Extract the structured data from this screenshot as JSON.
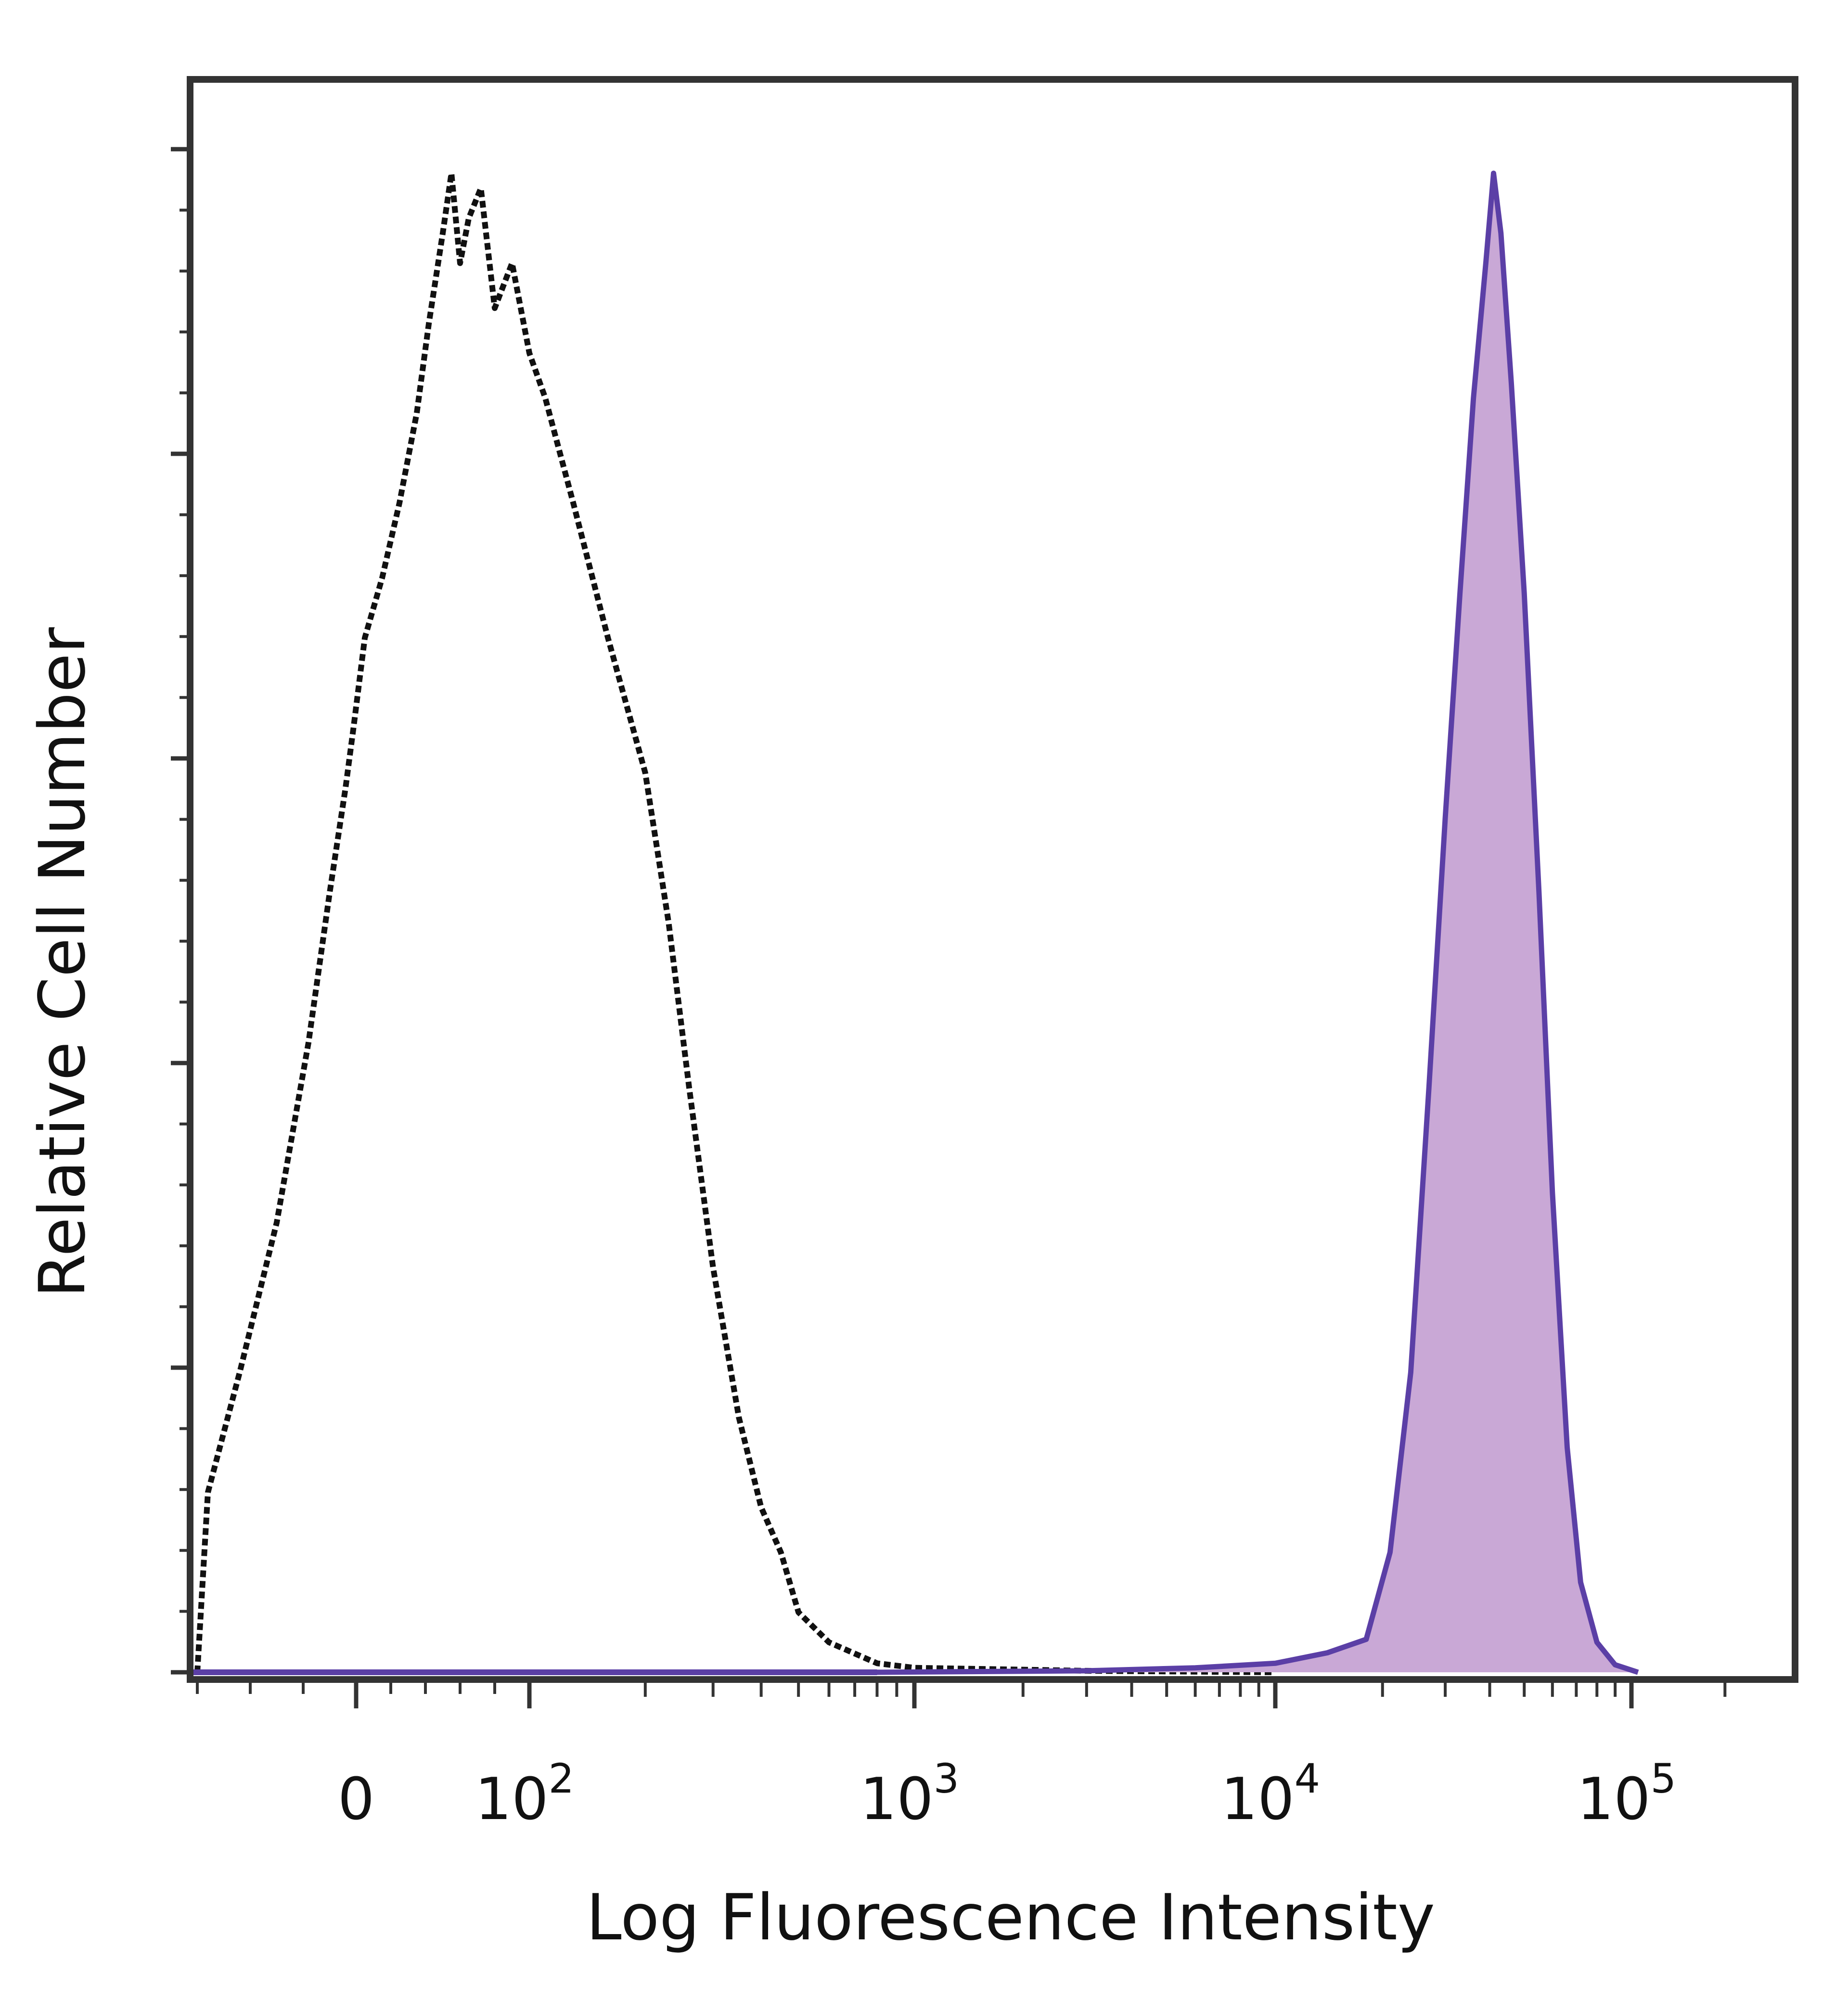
{
  "chart_data": {
    "type": "area",
    "title": "",
    "xlabel": "Log Fluorescence Intensity",
    "ylabel": "Relative Cell Number",
    "x_scale": "biexponential",
    "xlim": [
      -300,
      262000
    ],
    "ylim": [
      0,
      100
    ],
    "grid": false,
    "legend": "none",
    "x_ticks": [
      {
        "value": 0,
        "label": "0",
        "base": "",
        "exp": ""
      },
      {
        "value": 100,
        "label": "10^2",
        "base": "10",
        "exp": "2"
      },
      {
        "value": 1000,
        "label": "10^3",
        "base": "10",
        "exp": "3"
      },
      {
        "value": 10000,
        "label": "10^4",
        "base": "10",
        "exp": "4"
      },
      {
        "value": 100000,
        "label": "10^5",
        "base": "10",
        "exp": "5"
      }
    ],
    "series": [
      {
        "style": "dotted-outline",
        "color": "#111111",
        "points": [
          [
            -300,
            0
          ],
          [
            -280,
            12
          ],
          [
            -220,
            20
          ],
          [
            -150,
            30
          ],
          [
            -90,
            42
          ],
          [
            -50,
            52
          ],
          [
            -20,
            59
          ],
          [
            -5,
            63
          ],
          [
            5,
            69
          ],
          [
            15,
            73
          ],
          [
            25,
            78
          ],
          [
            35,
            84
          ],
          [
            42,
            90
          ],
          [
            50,
            96
          ],
          [
            55,
            100
          ],
          [
            60,
            94
          ],
          [
            65,
            97
          ],
          [
            72,
            99
          ],
          [
            80,
            91
          ],
          [
            90,
            94
          ],
          [
            100,
            88
          ],
          [
            110,
            85
          ],
          [
            130,
            78
          ],
          [
            160,
            69
          ],
          [
            200,
            60
          ],
          [
            230,
            50
          ],
          [
            260,
            39
          ],
          [
            300,
            27
          ],
          [
            350,
            17
          ],
          [
            400,
            11
          ],
          [
            450,
            8
          ],
          [
            500,
            4
          ],
          [
            600,
            2
          ],
          [
            800,
            0.6
          ],
          [
            1000,
            0.3
          ],
          [
            3000,
            0.1
          ],
          [
            10000,
            0
          ]
        ]
      },
      {
        "style": "filled",
        "color": "#5b3fa6",
        "fill": "#c9a8d6",
        "points": [
          [
            -300,
            0
          ],
          [
            300,
            0
          ],
          [
            800,
            0
          ],
          [
            3000,
            0.1
          ],
          [
            6000,
            0.3
          ],
          [
            10000,
            0.6
          ],
          [
            14000,
            1.3
          ],
          [
            18000,
            2.2
          ],
          [
            21000,
            8
          ],
          [
            24000,
            20
          ],
          [
            27000,
            39
          ],
          [
            30000,
            57
          ],
          [
            33000,
            72
          ],
          [
            36000,
            85
          ],
          [
            39000,
            94
          ],
          [
            41000,
            100
          ],
          [
            43000,
            96
          ],
          [
            46000,
            86
          ],
          [
            50000,
            72
          ],
          [
            55000,
            52
          ],
          [
            60000,
            32
          ],
          [
            66000,
            15
          ],
          [
            72000,
            6
          ],
          [
            80000,
            2
          ],
          [
            90000,
            0.5
          ],
          [
            105000,
            0
          ]
        ]
      }
    ]
  }
}
